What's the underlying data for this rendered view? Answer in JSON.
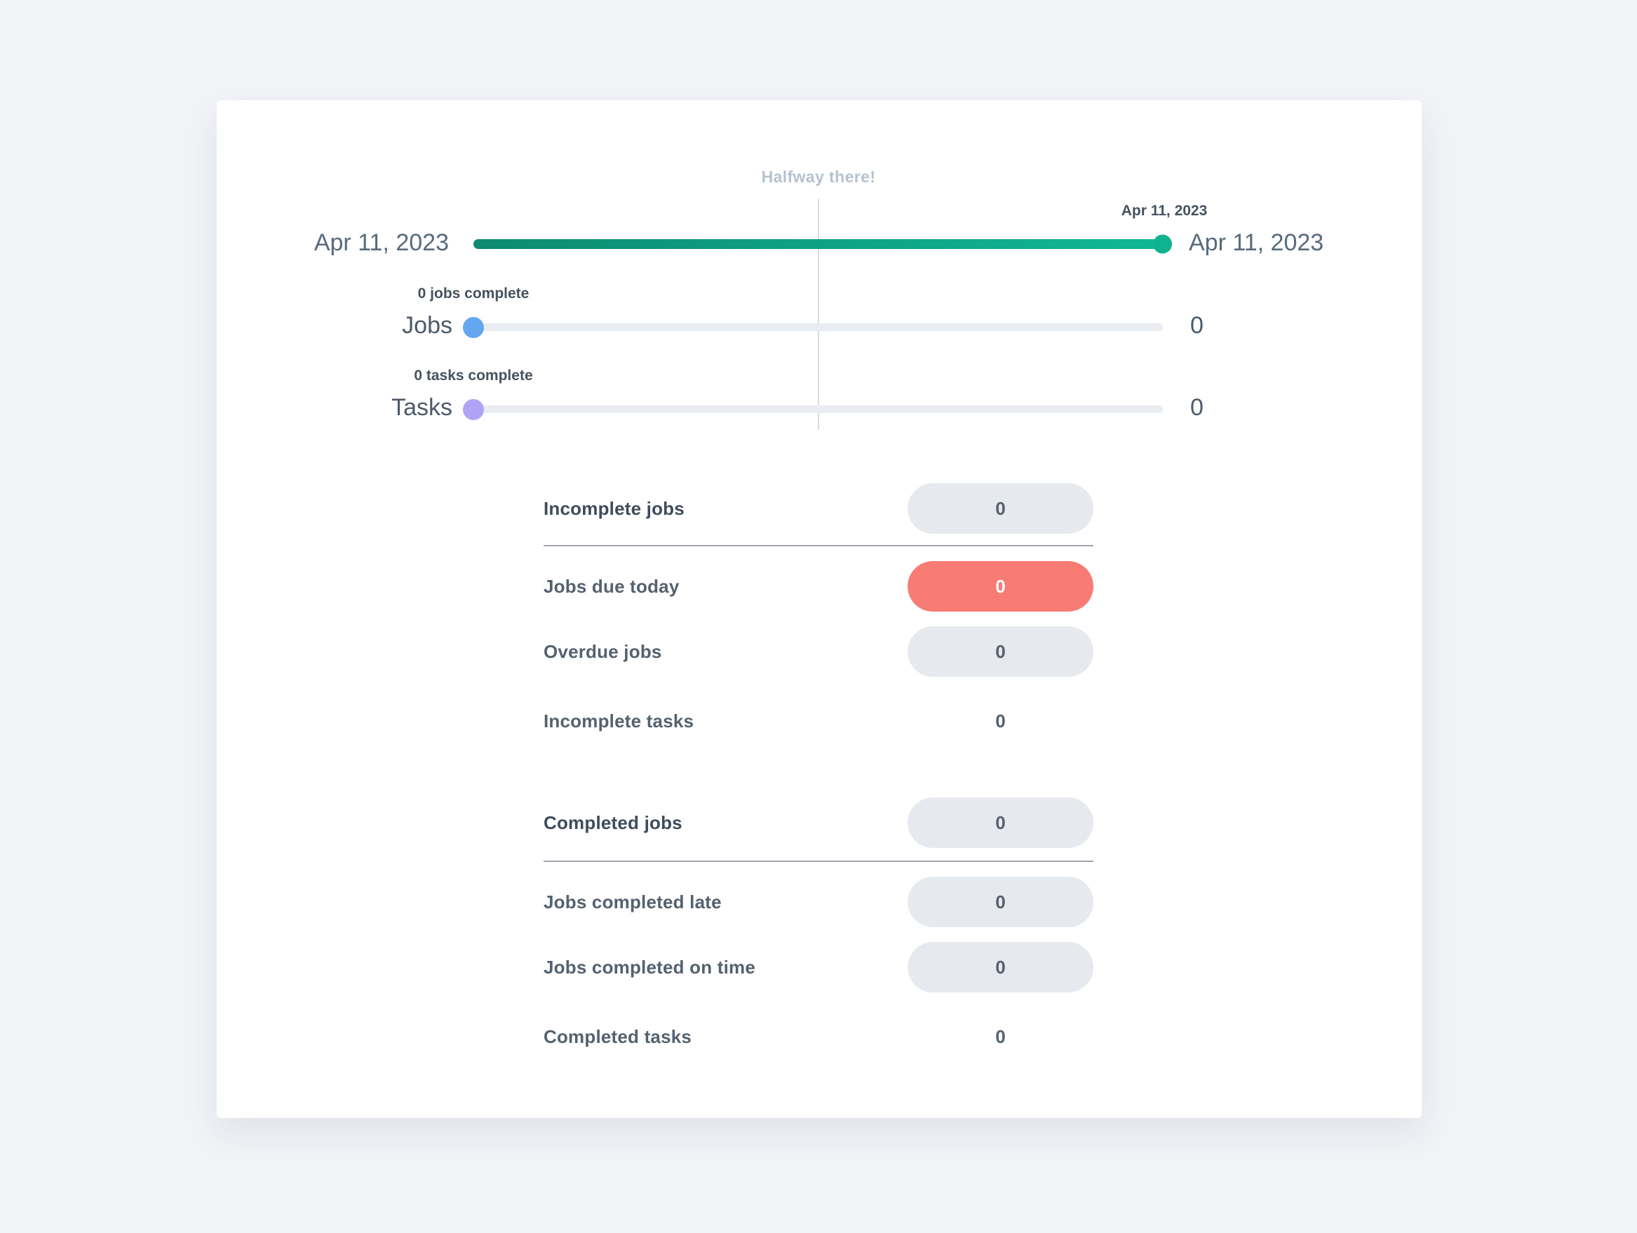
{
  "timeline": {
    "halfway_label": "Halfway there!",
    "start_date": "Apr 11, 2023",
    "end_date": "Apr 11, 2023",
    "knob_date": "Apr 11, 2023",
    "progress_percent": 100
  },
  "progress_rows": [
    {
      "label": "Jobs",
      "tooltip": "0 jobs complete",
      "value": "0",
      "knob_color": "#64a6f0",
      "progress_percent": 0
    },
    {
      "label": "Tasks",
      "tooltip": "0 tasks complete",
      "value": "0",
      "knob_color": "#b0a3f7",
      "progress_percent": 0
    }
  ],
  "stats": [
    {
      "label": "Incomplete jobs",
      "value": "0",
      "pill": "gray",
      "header": true
    },
    {
      "label": "Jobs due today",
      "value": "0",
      "pill": "red",
      "header": false
    },
    {
      "label": "Overdue jobs",
      "value": "0",
      "pill": "gray",
      "header": false
    },
    {
      "label": "Incomplete tasks",
      "value": "0",
      "pill": "none",
      "header": false
    },
    {
      "label": "Completed jobs",
      "value": "0",
      "pill": "gray",
      "header": true
    },
    {
      "label": "Jobs completed late",
      "value": "0",
      "pill": "gray",
      "header": false
    },
    {
      "label": "Jobs completed on time",
      "value": "0",
      "pill": "gray",
      "header": false
    },
    {
      "label": "Completed tasks",
      "value": "0",
      "pill": "none",
      "header": false
    }
  ],
  "colors": {
    "page_background": "#f1f3f7",
    "card_background": "#ffffff",
    "timeline_bar_gradient_start": "#0e8a70",
    "timeline_bar_gradient_end": "#10b897",
    "timeline_knob": "#0fb392",
    "track_gray": "#e9edf1",
    "jobs_knob_blue": "#64a6f0",
    "tasks_knob_purple": "#b0a3f7",
    "pill_gray": "#e6eaee",
    "pill_red": "#f87b74",
    "halfway_text": "#b7c1cf",
    "date_text": "#596a7d",
    "label_text": "#55616f",
    "divider": "#9fa6ae"
  }
}
